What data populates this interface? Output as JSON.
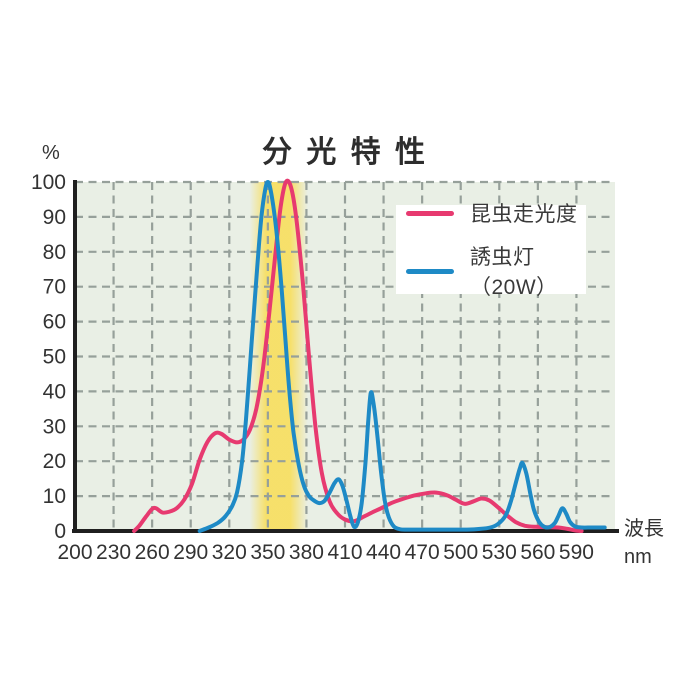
{
  "page": {
    "title_display": "分 光 特 性",
    "y_unit_label": "%",
    "x_unit_label_1": "波長",
    "x_unit_label_2": "nm"
  },
  "colors": {
    "page_background": "#ffffff",
    "plot_background": "#e9efe5",
    "grid": "#96a09a",
    "axis": "#1f1f1f",
    "tick_text": "#333333",
    "legend_background": "#ffffff",
    "highlight_band": "#f9dd55",
    "series_insect": "#e73a70",
    "series_lamp": "#1e8ac6"
  },
  "chart_data": {
    "type": "line",
    "title": "分光特性",
    "xlabel": "波長 nm",
    "ylabel": "%",
    "xlim": [
      200,
      620
    ],
    "ylim": [
      0,
      100
    ],
    "x_ticks": [
      200,
      230,
      260,
      290,
      320,
      350,
      380,
      410,
      440,
      470,
      500,
      530,
      560,
      590
    ],
    "y_ticks": [
      0,
      10,
      20,
      30,
      40,
      50,
      60,
      70,
      80,
      90,
      100
    ],
    "grid": true,
    "grid_style": "dashed",
    "legend_position": "top-right",
    "highlight_band": {
      "x_start": 336,
      "x_end": 381,
      "color": "#f9dd55"
    },
    "series": [
      {
        "name": "昆虫走光度",
        "color": "#e73a70",
        "points": [
          [
            246,
            0
          ],
          [
            250,
            1.5
          ],
          [
            255,
            4
          ],
          [
            260,
            6.3
          ],
          [
            263,
            6.5
          ],
          [
            268,
            5.3
          ],
          [
            273,
            5.5
          ],
          [
            279,
            6.5
          ],
          [
            285,
            9
          ],
          [
            291,
            13.5
          ],
          [
            297,
            20.5
          ],
          [
            303,
            25.5
          ],
          [
            309,
            28
          ],
          [
            314,
            27.8
          ],
          [
            320,
            26.2
          ],
          [
            326,
            25.4
          ],
          [
            331,
            26.2
          ],
          [
            336,
            29
          ],
          [
            341,
            35
          ],
          [
            346,
            46
          ],
          [
            351,
            62
          ],
          [
            356,
            80
          ],
          [
            360,
            93
          ],
          [
            364,
            100
          ],
          [
            368,
            98.5
          ],
          [
            372,
            90
          ],
          [
            377,
            72
          ],
          [
            382,
            50
          ],
          [
            387,
            30
          ],
          [
            392,
            16.5
          ],
          [
            398,
            8.5
          ],
          [
            404,
            5
          ],
          [
            410,
            3.3
          ],
          [
            417,
            2.8
          ],
          [
            424,
            4
          ],
          [
            431,
            5.3
          ],
          [
            438,
            6.5
          ],
          [
            446,
            8
          ],
          [
            455,
            9.2
          ],
          [
            464,
            10.2
          ],
          [
            473,
            10.8
          ],
          [
            481,
            11
          ],
          [
            489,
            10.3
          ],
          [
            496,
            9
          ],
          [
            503,
            7.8
          ],
          [
            510,
            8.5
          ],
          [
            516,
            9.3
          ],
          [
            522,
            8.8
          ],
          [
            529,
            6.8
          ],
          [
            536,
            4.5
          ],
          [
            543,
            2.5
          ],
          [
            550,
            1.5
          ],
          [
            558,
            1.2
          ],
          [
            567,
            1.1
          ],
          [
            576,
            1
          ],
          [
            583,
            0.6
          ],
          [
            590,
            0.1
          ],
          [
            594,
            0
          ]
        ]
      },
      {
        "name": "誘虫灯（20W）",
        "color": "#1e8ac6",
        "points": [
          [
            297,
            0
          ],
          [
            304,
            1
          ],
          [
            311,
            2.3
          ],
          [
            317,
            4.2
          ],
          [
            322,
            7
          ],
          [
            326,
            11
          ],
          [
            330,
            20
          ],
          [
            333,
            32
          ],
          [
            336,
            47
          ],
          [
            339,
            62
          ],
          [
            342,
            77
          ],
          [
            345,
            90
          ],
          [
            348,
            98
          ],
          [
            350,
            100
          ],
          [
            352,
            98
          ],
          [
            355,
            91
          ],
          [
            358,
            81
          ],
          [
            361,
            68
          ],
          [
            364,
            53
          ],
          [
            367,
            39
          ],
          [
            370,
            28
          ],
          [
            374,
            19
          ],
          [
            378,
            13
          ],
          [
            382,
            10
          ],
          [
            386,
            8.7
          ],
          [
            390,
            8
          ],
          [
            394,
            8.6
          ],
          [
            398,
            11
          ],
          [
            402,
            13.8
          ],
          [
            405,
            14.8
          ],
          [
            408,
            13
          ],
          [
            411,
            9
          ],
          [
            414,
            4.5
          ],
          [
            417,
            1.2
          ],
          [
            420,
            2.5
          ],
          [
            423,
            8
          ],
          [
            426,
            20
          ],
          [
            428,
            31
          ],
          [
            430,
            39.5
          ],
          [
            432,
            37
          ],
          [
            435,
            28
          ],
          [
            438,
            17
          ],
          [
            441,
            8.5
          ],
          [
            444,
            4
          ],
          [
            448,
            1.3
          ],
          [
            453,
            0.5
          ],
          [
            460,
            0.4
          ],
          [
            475,
            0.4
          ],
          [
            490,
            0.4
          ],
          [
            505,
            0.4
          ],
          [
            515,
            0.6
          ],
          [
            523,
            1
          ],
          [
            529,
            2
          ],
          [
            535,
            4.5
          ],
          [
            539,
            8.5
          ],
          [
            543,
            14
          ],
          [
            546,
            18
          ],
          [
            548,
            19.5
          ],
          [
            551,
            16.5
          ],
          [
            554,
            11
          ],
          [
            557,
            6
          ],
          [
            561,
            2.6
          ],
          [
            565,
            1.2
          ],
          [
            569,
            1.1
          ],
          [
            573,
            2.2
          ],
          [
            576,
            4.3
          ],
          [
            579,
            6.5
          ],
          [
            582,
            5
          ],
          [
            585,
            2.6
          ],
          [
            589,
            1.3
          ],
          [
            594,
            1
          ],
          [
            602,
            1
          ],
          [
            612,
            1
          ]
        ]
      }
    ]
  }
}
